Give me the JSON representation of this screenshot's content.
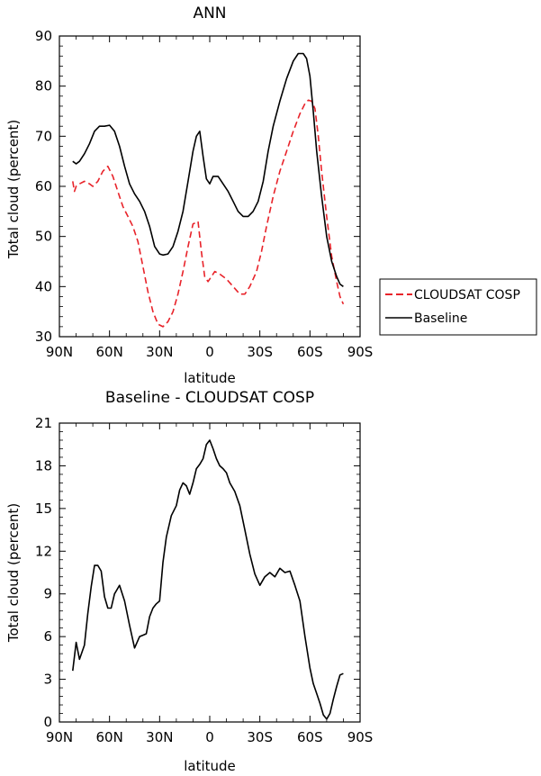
{
  "chart_data": [
    {
      "type": "line",
      "title": "ANN",
      "xlabel": "latitude",
      "ylabel": "Total cloud (percent)",
      "xlim": [
        90,
        -90
      ],
      "ylim": [
        30,
        90
      ],
      "yticks": [
        30,
        40,
        50,
        60,
        70,
        80,
        90
      ],
      "xticks": [
        90,
        60,
        30,
        0,
        -30,
        -60,
        -90
      ],
      "xtick_labels": [
        "90N",
        "60N",
        "30N",
        "0",
        "30S",
        "60S",
        "90S"
      ],
      "legend": {
        "placement": "right",
        "entries": [
          "CLOUDSAT COSP",
          "Baseline"
        ]
      },
      "series": [
        {
          "name": "CLOUDSAT COSP",
          "color": "#e8232a",
          "dash": "dashed",
          "x": [
            82,
            81,
            80,
            78,
            75,
            72,
            70,
            67,
            64,
            61,
            58,
            55,
            52,
            49,
            46,
            43,
            40,
            37,
            34,
            31,
            28,
            25,
            22,
            19,
            16,
            13,
            10,
            7,
            5,
            3,
            1,
            -1,
            -3,
            -6,
            -10,
            -14,
            -18,
            -21,
            -24,
            -28,
            -31,
            -34,
            -38,
            -42,
            -46,
            -50,
            -54,
            -57,
            -59,
            -61,
            -63,
            -65,
            -67,
            -70,
            -73,
            -76,
            -78,
            -80
          ],
          "y": [
            61,
            59,
            60,
            60.5,
            61,
            60.5,
            60,
            61,
            63,
            64,
            62,
            59,
            56,
            54,
            52,
            49,
            44,
            39,
            35,
            32.5,
            32,
            33,
            35,
            38.5,
            43,
            48,
            52.5,
            53,
            47,
            42,
            41,
            42,
            43,
            42.5,
            41.5,
            40,
            38.5,
            38.5,
            40,
            43,
            47,
            52,
            58,
            63,
            67,
            71,
            74.5,
            76.5,
            77.2,
            77,
            75.5,
            70,
            63,
            54,
            46,
            41,
            38,
            36.5
          ]
        },
        {
          "name": "Baseline",
          "color": "#000000",
          "dash": "solid",
          "x": [
            82,
            80,
            78,
            75,
            72,
            69,
            66,
            63,
            60,
            57,
            54,
            51,
            48,
            45,
            42,
            39,
            36,
            33,
            30,
            28,
            25,
            22,
            19,
            16,
            13,
            10,
            8,
            6,
            4,
            2,
            0,
            -2,
            -5,
            -8,
            -11,
            -14,
            -17,
            -20,
            -23,
            -26,
            -29,
            -32,
            -35,
            -38,
            -42,
            -46,
            -50,
            -53,
            -56,
            -58,
            -60,
            -62,
            -64,
            -67,
            -70,
            -73,
            -76,
            -78,
            -80
          ],
          "y": [
            65,
            64.5,
            65,
            66.5,
            68.5,
            71,
            72,
            72,
            72.2,
            71,
            68,
            64,
            60.5,
            58.5,
            57,
            55,
            52,
            48,
            46.5,
            46.3,
            46.5,
            48,
            51,
            55,
            61,
            67,
            70,
            71,
            66,
            61.5,
            60.5,
            62,
            62,
            60.5,
            59,
            57,
            55,
            54,
            54,
            55,
            57,
            61,
            67,
            72,
            77,
            81.5,
            85,
            86.5,
            86.5,
            85.5,
            82,
            75,
            67,
            58,
            50,
            45,
            42,
            40.5,
            40
          ]
        }
      ]
    },
    {
      "type": "line",
      "title": "Baseline - CLOUDSAT COSP",
      "xlabel": "latitude",
      "ylabel": "Total cloud (percent)",
      "xlim": [
        90,
        -90
      ],
      "ylim": [
        0,
        21
      ],
      "yticks": [
        0,
        3,
        6,
        9,
        12,
        15,
        18,
        21
      ],
      "xticks": [
        90,
        60,
        30,
        0,
        -30,
        -60,
        -90
      ],
      "xtick_labels": [
        "90N",
        "60N",
        "30N",
        "0",
        "30S",
        "60S",
        "90S"
      ],
      "series": [
        {
          "name": "Baseline - CLOUDSAT COSP",
          "color": "#000000",
          "dash": "solid",
          "x": [
            82,
            80,
            78,
            75,
            73,
            71,
            69,
            67,
            65,
            63,
            61,
            59,
            57,
            54,
            51,
            48,
            45,
            42,
            40,
            38,
            36,
            34,
            32,
            30,
            28,
            26,
            23,
            20,
            18,
            16,
            14,
            12,
            10,
            8,
            6,
            4,
            2,
            0,
            -2,
            -4,
            -6,
            -8,
            -10,
            -12,
            -15,
            -18,
            -21,
            -24,
            -27,
            -30,
            -33,
            -36,
            -39,
            -42,
            -45,
            -48,
            -51,
            -54,
            -57,
            -60,
            -62,
            -64,
            -66,
            -68,
            -70,
            -72,
            -74,
            -76,
            -78,
            -80
          ],
          "y": [
            3.6,
            5.6,
            4.4,
            5.4,
            7.6,
            9.5,
            11,
            11,
            10.6,
            8.8,
            8,
            8,
            9,
            9.6,
            8.5,
            6.8,
            5.2,
            6,
            6.1,
            6.2,
            7.4,
            8,
            8.3,
            8.5,
            11.2,
            13,
            14.5,
            15.2,
            16.3,
            16.8,
            16.6,
            16,
            16.8,
            17.8,
            18.1,
            18.5,
            19.5,
            19.8,
            19.2,
            18.5,
            18,
            17.8,
            17.5,
            16.8,
            16.2,
            15.2,
            13.5,
            11.8,
            10.4,
            9.6,
            10.2,
            10.5,
            10.2,
            10.8,
            10.5,
            10.6,
            9.6,
            8.5,
            6,
            3.8,
            2.7,
            2,
            1.3,
            0.5,
            0.2,
            0.6,
            1.6,
            2.5,
            3.3,
            3.4
          ]
        }
      ]
    }
  ]
}
